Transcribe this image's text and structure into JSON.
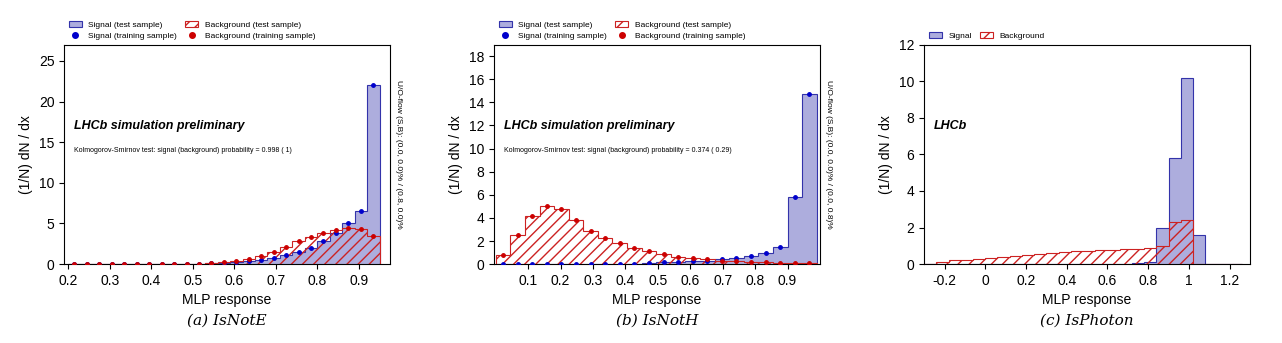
{
  "chart_data": [
    {
      "type": "histogram",
      "title": "(a) IsNotE",
      "xlabel": "MLP response",
      "ylabel": "(1/N) dN / dx",
      "annotations": [
        "LHCb simulation preliminary",
        "Kolmogorov-Smirnov test: signal (background) probability = 0.998 ( 1)"
      ],
      "y2label": "U/O-flow (S,B): (0.0, 0.0)% / (0.8, 0.0)%",
      "xlim": [
        0.19,
        0.975
      ],
      "ylim": [
        0,
        27
      ],
      "xticks": [
        0.2,
        0.3,
        0.4,
        0.5,
        0.6,
        0.7,
        0.8,
        0.9
      ],
      "yticks": [
        0,
        5,
        10,
        15,
        20,
        25
      ],
      "bins": [
        0.2,
        0.23,
        0.26,
        0.29,
        0.32,
        0.35,
        0.38,
        0.41,
        0.44,
        0.47,
        0.5,
        0.53,
        0.56,
        0.59,
        0.62,
        0.65,
        0.68,
        0.71,
        0.74,
        0.77,
        0.8,
        0.83,
        0.86,
        0.89,
        0.92,
        0.95
      ],
      "series": [
        {
          "name": "Signal (test sample)",
          "type": "bar",
          "color": "#3333aa",
          "values": [
            0.0,
            0.0,
            0.0,
            0.0,
            0.0,
            0.0,
            0.0,
            0.0,
            0.0,
            0.02,
            0.05,
            0.08,
            0.12,
            0.2,
            0.35,
            0.55,
            0.8,
            1.1,
            1.5,
            2.0,
            2.8,
            3.8,
            5.0,
            6.5,
            22.0
          ]
        },
        {
          "name": "Signal (training sample)",
          "type": "scatter",
          "color": "#0000cc",
          "x": [
            0.215,
            0.245,
            0.275,
            0.305,
            0.335,
            0.365,
            0.395,
            0.425,
            0.455,
            0.485,
            0.515,
            0.545,
            0.575,
            0.605,
            0.635,
            0.665,
            0.695,
            0.725,
            0.755,
            0.785,
            0.815,
            0.845,
            0.875,
            0.905,
            0.935
          ],
          "values": [
            0.0,
            0.0,
            0.0,
            0.0,
            0.0,
            0.0,
            0.0,
            0.0,
            0.0,
            0.02,
            0.05,
            0.08,
            0.12,
            0.2,
            0.35,
            0.55,
            0.8,
            1.1,
            1.5,
            2.0,
            2.8,
            3.8,
            5.0,
            6.5,
            22.0
          ]
        },
        {
          "name": "Background (test sample)",
          "type": "bar",
          "color": "#cc2222",
          "values": [
            0.0,
            0.0,
            0.0,
            0.0,
            0.0,
            0.0,
            0.0,
            0.0,
            0.0,
            0.02,
            0.05,
            0.12,
            0.2,
            0.38,
            0.65,
            1.0,
            1.5,
            2.1,
            2.8,
            3.3,
            3.8,
            4.2,
            4.4,
            4.3,
            3.5
          ]
        },
        {
          "name": "Background (training sample)",
          "type": "scatter",
          "color": "#cc0000",
          "x": [
            0.215,
            0.245,
            0.275,
            0.305,
            0.335,
            0.365,
            0.395,
            0.425,
            0.455,
            0.485,
            0.515,
            0.545,
            0.575,
            0.605,
            0.635,
            0.665,
            0.695,
            0.725,
            0.755,
            0.785,
            0.815,
            0.845,
            0.875,
            0.905,
            0.935
          ],
          "values": [
            0.0,
            0.0,
            0.0,
            0.0,
            0.0,
            0.0,
            0.0,
            0.0,
            0.0,
            0.02,
            0.05,
            0.12,
            0.2,
            0.38,
            0.65,
            1.0,
            1.5,
            2.1,
            2.8,
            3.3,
            3.8,
            4.2,
            4.4,
            4.3,
            3.5
          ]
        }
      ]
    },
    {
      "type": "histogram",
      "title": "(b) IsNotH",
      "xlabel": "MLP response",
      "ylabel": "(1/N) dN / dx",
      "annotations": [
        "LHCb simulation preliminary",
        "Kolmogorov-Smirnov test: signal (background) probability = 0.374 ( 0.29)"
      ],
      "y2label": "U/O-flow (S,B): (0.0, 0.0)% / (0.0, 0.8)%",
      "xlim": [
        -0.005,
        1.0
      ],
      "ylim": [
        0,
        19
      ],
      "xticks": [
        0.1,
        0.2,
        0.3,
        0.4,
        0.5,
        0.6,
        0.7,
        0.8,
        0.9
      ],
      "yticks": [
        0,
        2,
        4,
        6,
        8,
        10,
        12,
        14,
        16,
        18
      ],
      "bins": [
        0.0,
        0.045,
        0.09,
        0.135,
        0.18,
        0.225,
        0.27,
        0.315,
        0.36,
        0.405,
        0.45,
        0.495,
        0.54,
        0.585,
        0.63,
        0.675,
        0.72,
        0.765,
        0.81,
        0.855,
        0.9,
        0.945,
        0.99
      ],
      "series": [
        {
          "name": "Signal (test sample)",
          "type": "bar",
          "color": "#3333aa",
          "values": [
            0.0,
            0.0,
            0.0,
            0.0,
            0.0,
            0.0,
            0.0,
            0.0,
            0.0,
            0.05,
            0.1,
            0.15,
            0.2,
            0.25,
            0.3,
            0.4,
            0.5,
            0.7,
            1.0,
            1.5,
            5.8,
            14.7
          ]
        },
        {
          "name": "Signal (training sample)",
          "type": "scatter",
          "color": "#0000cc",
          "x": [
            0.0225,
            0.0675,
            0.1125,
            0.1575,
            0.2025,
            0.2475,
            0.2925,
            0.3375,
            0.3825,
            0.4275,
            0.4725,
            0.5175,
            0.5625,
            0.6075,
            0.6525,
            0.6975,
            0.7425,
            0.7875,
            0.8325,
            0.8775,
            0.9225,
            0.9675
          ],
          "values": [
            0.0,
            0.0,
            0.0,
            0.0,
            0.0,
            0.0,
            0.0,
            0.0,
            0.0,
            0.05,
            0.1,
            0.15,
            0.2,
            0.25,
            0.3,
            0.4,
            0.5,
            0.7,
            1.0,
            1.5,
            5.8,
            14.7
          ]
        },
        {
          "name": "Background (test sample)",
          "type": "bar",
          "color": "#cc2222",
          "values": [
            0.8,
            2.5,
            4.2,
            5.0,
            4.8,
            3.8,
            2.9,
            2.3,
            1.8,
            1.4,
            1.1,
            0.85,
            0.65,
            0.5,
            0.4,
            0.3,
            0.25,
            0.2,
            0.15,
            0.12,
            0.1,
            0.08
          ]
        },
        {
          "name": "Background (training sample)",
          "type": "scatter",
          "color": "#cc0000",
          "x": [
            0.0225,
            0.0675,
            0.1125,
            0.1575,
            0.2025,
            0.2475,
            0.2925,
            0.3375,
            0.3825,
            0.4275,
            0.4725,
            0.5175,
            0.5625,
            0.6075,
            0.6525,
            0.6975,
            0.7425,
            0.7875,
            0.8325,
            0.8775,
            0.9225,
            0.9675
          ],
          "values": [
            0.8,
            2.5,
            4.2,
            5.0,
            4.8,
            3.8,
            2.9,
            2.3,
            1.8,
            1.4,
            1.1,
            0.85,
            0.65,
            0.5,
            0.4,
            0.3,
            0.25,
            0.2,
            0.15,
            0.12,
            0.1,
            0.08
          ]
        }
      ]
    },
    {
      "type": "histogram",
      "title": "(c) IsPhoton",
      "xlabel": "MLP response",
      "ylabel": "(1/N) dN / dx",
      "annotations": [
        "LHCb"
      ],
      "xlim": [
        -0.3,
        1.3
      ],
      "ylim": [
        0,
        12
      ],
      "xticks": [
        -0.2,
        0,
        0.2,
        0.4,
        0.6,
        0.8,
        1,
        1.2
      ],
      "yticks": [
        0,
        2,
        4,
        6,
        8,
        10,
        12
      ],
      "bins": [
        -0.3,
        -0.24,
        -0.18,
        -0.12,
        -0.06,
        0.0,
        0.06,
        0.12,
        0.18,
        0.24,
        0.3,
        0.36,
        0.42,
        0.48,
        0.54,
        0.6,
        0.66,
        0.72,
        0.78,
        0.84,
        0.9,
        0.96,
        1.02,
        1.08,
        1.14,
        1.2,
        1.26
      ],
      "series": [
        {
          "name": "Signal",
          "type": "bar",
          "color": "#3333aa",
          "values": [
            0.0,
            0.0,
            0.0,
            0.0,
            0.0,
            0.0,
            0.0,
            0.0,
            0.0,
            0.0,
            0.0,
            0.0,
            0.0,
            0.0,
            0.0,
            0.0,
            0.0,
            0.05,
            0.1,
            2.0,
            5.8,
            10.2,
            1.6,
            0.0,
            0.0,
            0.0
          ]
        },
        {
          "name": "Background",
          "type": "bar",
          "color": "#cc2222",
          "values": [
            0.0,
            0.1,
            0.2,
            0.25,
            0.3,
            0.35,
            0.4,
            0.45,
            0.5,
            0.55,
            0.6,
            0.65,
            0.7,
            0.72,
            0.75,
            0.78,
            0.82,
            0.85,
            0.9,
            1.0,
            2.3,
            2.4,
            0.0,
            0.0,
            0.0,
            0.0
          ]
        }
      ]
    }
  ]
}
